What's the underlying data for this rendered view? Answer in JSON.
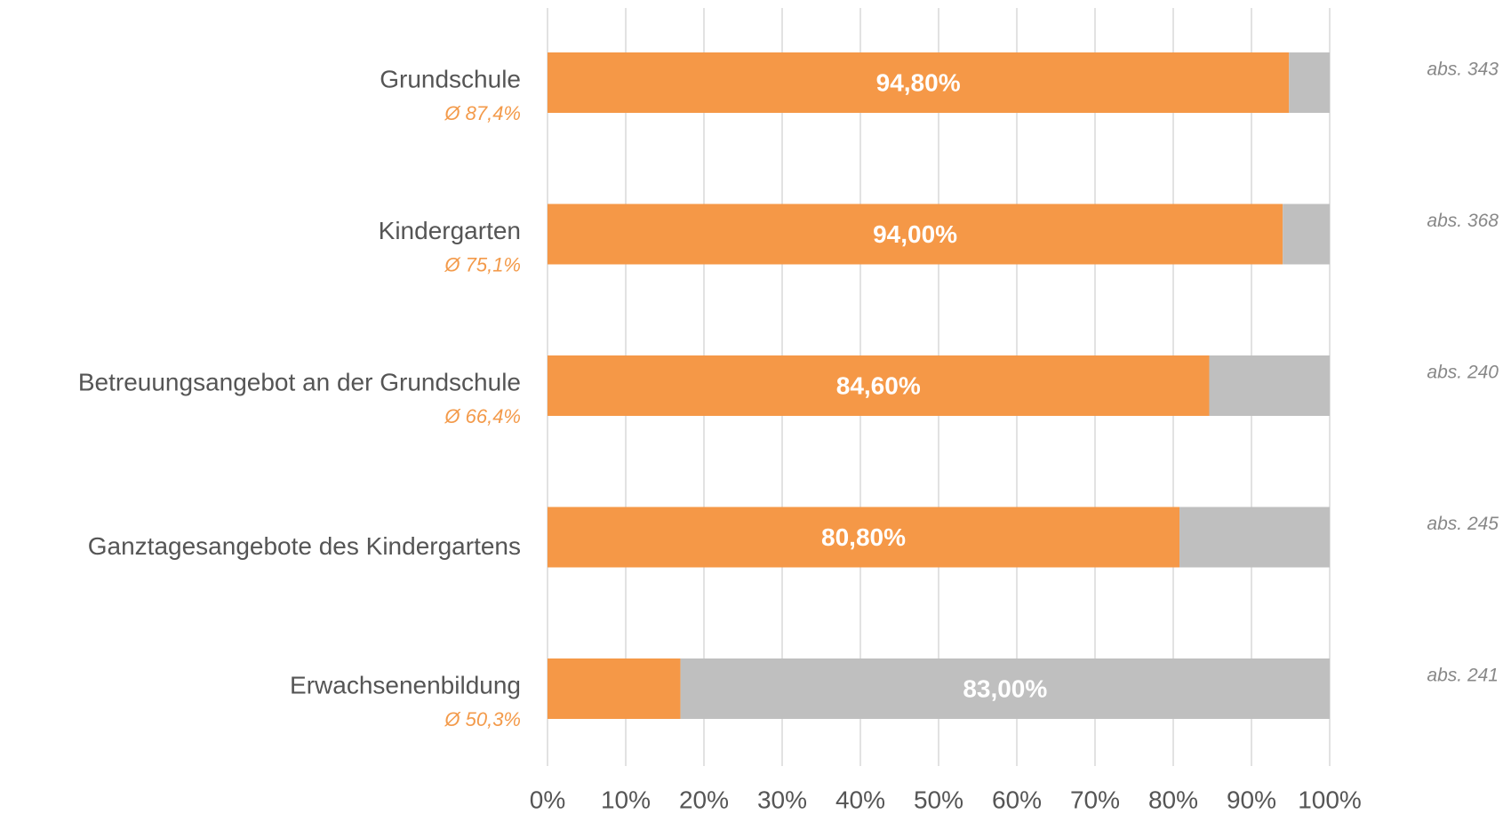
{
  "chart_data": {
    "type": "stacked_barh",
    "categories": [
      "Grundschule",
      "Kindergarten",
      "Betreuungsangebot an der Grundschule",
      "Ganztagesangebote des Kindergartens",
      "Erwachsenenbildung"
    ],
    "averages": [
      "Ø 87,4%",
      "Ø 75,1%",
      "Ø 66,4%",
      null,
      "Ø 50,3%"
    ],
    "counts": [
      "abs. 343",
      "abs. 368",
      "abs. 240",
      "abs. 245",
      "abs. 241"
    ],
    "series": [
      {
        "color": "#f59847",
        "values": [
          94.8,
          94.0,
          84.6,
          80.8,
          17.0
        ],
        "value_labels": [
          "94,80%",
          "94,00%",
          "84,60%",
          "80,80%",
          null
        ]
      },
      {
        "color": "#bfbfbf",
        "values": [
          5.2,
          6.0,
          15.4,
          19.2,
          83.0
        ],
        "value_labels": [
          null,
          null,
          null,
          null,
          "83,00%"
        ]
      }
    ],
    "xlim": [
      0,
      100
    ],
    "xticks": [
      {
        "value": 0,
        "label": "0%"
      },
      {
        "value": 10,
        "label": "10%"
      },
      {
        "value": 20,
        "label": "20%"
      },
      {
        "value": 30,
        "label": "30%"
      },
      {
        "value": 40,
        "label": "40%"
      },
      {
        "value": 50,
        "label": "50%"
      },
      {
        "value": 60,
        "label": "60%"
      },
      {
        "value": 70,
        "label": "70%"
      },
      {
        "value": 80,
        "label": "80%"
      },
      {
        "value": 90,
        "label": "90%"
      },
      {
        "value": 100,
        "label": "100%"
      }
    ],
    "grid": true
  }
}
